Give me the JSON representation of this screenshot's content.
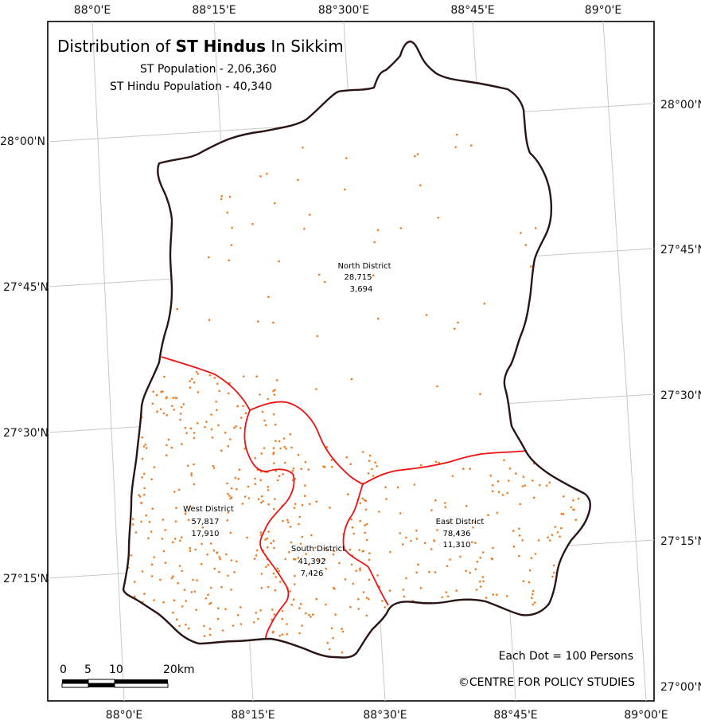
{
  "title_prefix": "Distribution of ",
  "title_bold": "ST Hindus",
  "title_suffix": " In Sikkim",
  "subtitle_1": "ST Population - 2,06,360",
  "subtitle_2": "ST Hindu Population - 40,340",
  "dot_note": "Each Dot = 100 Persons",
  "credit": "©CENTRE FOR POLICY STUDIES",
  "scale_bar": {
    "labels": [
      "0",
      "5",
      "10",
      "20km"
    ]
  },
  "ticks": {
    "top": [
      "88°0'E",
      "88°15'E",
      "88°300'E",
      "88°45'E",
      "89°0'E"
    ],
    "bottom": [
      "88°0'E",
      "88°15'E",
      "88°30'E",
      "88°45'E",
      "89°00'E"
    ],
    "left": [
      "28°00'N",
      "27°45'N",
      "27°30'N",
      "27°15'N"
    ],
    "right": [
      "28°00'N",
      "27°45'N",
      "27°30'N",
      "27°15'N",
      "27°00'N"
    ]
  },
  "colors": {
    "boundary": "#2a1414",
    "district_border": "#ee1111",
    "dot": "#f07a1e",
    "grid": "#c8c8c8"
  },
  "districts": [
    {
      "key": "north",
      "name": "North  District",
      "st_population": "28,715",
      "st_hindu_population": "3,694"
    },
    {
      "key": "west",
      "name": "West District",
      "st_population": "57,817",
      "st_hindu_population": "17,910"
    },
    {
      "key": "south",
      "name": "South District",
      "st_population": "41,392",
      "st_hindu_population": "7,426"
    },
    {
      "key": "east",
      "name": "East District",
      "st_population": "78,436",
      "st_hindu_population": "11,310"
    }
  ]
}
